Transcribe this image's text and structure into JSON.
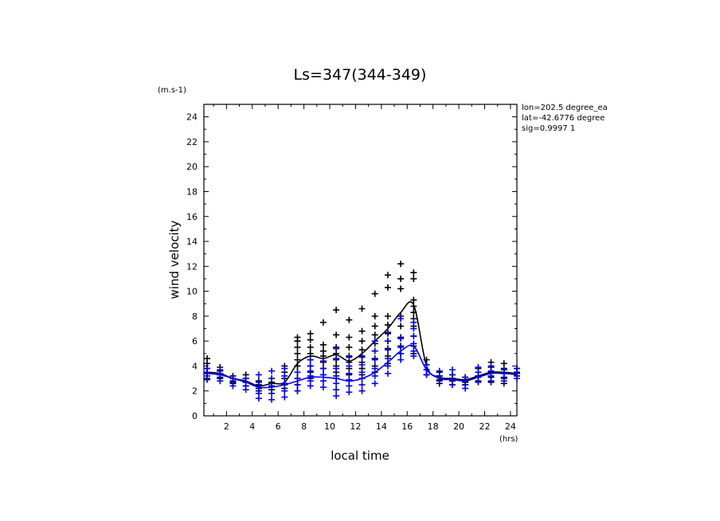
{
  "chart_data": {
    "type": "scatter",
    "title": "Ls=347(344-349)",
    "xlabel": "local time",
    "ylabel": "wind velocity",
    "xunit": "(hrs)",
    "yunit": "(m.s-1)",
    "annotations": [
      "lon=202.5 degree_ea",
      "lat=-42.6776 degree",
      "sig=0.9997 1"
    ],
    "xlim": [
      0.25,
      24.5
    ],
    "ylim": [
      0,
      25
    ],
    "xticks": [
      2,
      4,
      6,
      8,
      10,
      12,
      14,
      16,
      18,
      20,
      22,
      24
    ],
    "yticks": [
      0,
      2,
      4,
      6,
      8,
      10,
      12,
      14,
      16,
      18,
      20,
      22,
      24
    ],
    "grid": false,
    "colors": {
      "black": "#000000",
      "blue": "#0000ff"
    },
    "series": [
      {
        "color": "black",
        "line": {
          "x": [
            0.5,
            1.5,
            2.5,
            3.5,
            4.5,
            5.5,
            6.5,
            7.5,
            8.5,
            9.5,
            10.5,
            11.5,
            12.5,
            13.5,
            14.5,
            15.5,
            16.5,
            17.5,
            18.5,
            19.5,
            20.5,
            21.5,
            22.5,
            23.5,
            24.5
          ],
          "y": [
            3.5,
            3.4,
            3.0,
            2.8,
            2.4,
            2.6,
            2.7,
            4.2,
            4.8,
            4.6,
            4.9,
            4.4,
            5.0,
            6.0,
            7.0,
            8.3,
            8.9,
            4.0,
            3.1,
            3.0,
            2.9,
            3.2,
            3.5,
            3.5,
            3.4
          ]
        },
        "points": [
          [
            0.5,
            [
              4.6,
              4.2,
              3.8,
              3.4,
              3.0
            ]
          ],
          [
            1.5,
            [
              3.9,
              3.6,
              3.3,
              3.0
            ]
          ],
          [
            2.5,
            [
              3.2,
              3.0,
              2.8,
              2.6
            ]
          ],
          [
            3.5,
            [
              3.3,
              3.0,
              2.7,
              2.4
            ]
          ],
          [
            4.5,
            [
              2.8,
              2.5,
              2.2,
              2.0
            ]
          ],
          [
            5.5,
            [
              3.0,
              2.7,
              2.4,
              2.1
            ]
          ],
          [
            6.5,
            [
              4.0,
              3.5,
              3.0,
              2.5,
              2.2
            ]
          ],
          [
            7.5,
            [
              6.3,
              6.0,
              5.5,
              5.0,
              4.5,
              4.0,
              3.5,
              3.0,
              2.5,
              2.0
            ]
          ],
          [
            8.5,
            [
              6.6,
              6.1,
              5.5,
              5.0,
              4.5,
              4.0,
              3.5,
              3.0
            ]
          ],
          [
            9.5,
            [
              7.5,
              5.7,
              5.2,
              4.8,
              4.3,
              3.8,
              3.3
            ]
          ],
          [
            10.5,
            [
              8.5,
              6.5,
              5.5,
              5.0,
              4.5,
              4.0,
              3.5,
              3.0
            ]
          ],
          [
            11.5,
            [
              7.7,
              6.3,
              5.5,
              4.8,
              4.3,
              3.8,
              3.3,
              2.8
            ]
          ],
          [
            12.5,
            [
              8.6,
              6.8,
              6.0,
              5.3,
              4.8,
              4.3,
              3.8,
              3.3
            ]
          ],
          [
            13.5,
            [
              9.8,
              8.0,
              7.2,
              6.5,
              5.8,
              5.2,
              4.6,
              4.0,
              3.5
            ]
          ],
          [
            14.5,
            [
              11.3,
              10.3,
              8.0,
              7.3,
              6.6,
              6.0,
              5.4,
              4.8,
              4.2
            ]
          ],
          [
            15.5,
            [
              12.2,
              11.0,
              10.2,
              8.0,
              7.2,
              6.3,
              5.6,
              5.0
            ]
          ],
          [
            16.5,
            [
              11.5,
              11.0,
              9.3,
              8.8,
              8.3,
              7.8,
              7.2,
              6.4,
              5.6,
              5.0
            ]
          ],
          [
            17.5,
            [
              4.5,
              4.1,
              3.7,
              3.3
            ]
          ],
          [
            18.5,
            [
              3.5,
              3.2,
              2.9,
              2.6
            ]
          ],
          [
            19.5,
            [
              3.3,
              3.0,
              2.8,
              2.5
            ]
          ],
          [
            20.5,
            [
              3.1,
              2.9,
              2.7,
              2.5
            ]
          ],
          [
            21.5,
            [
              3.8,
              3.5,
              3.2,
              2.8
            ]
          ],
          [
            22.5,
            [
              4.3,
              3.9,
              3.5,
              3.1,
              2.7
            ]
          ],
          [
            23.5,
            [
              4.2,
              3.8,
              3.4,
              3.0,
              2.6
            ]
          ],
          [
            24.5,
            [
              3.8,
              3.5,
              3.2
            ]
          ]
        ]
      },
      {
        "color": "blue",
        "line": {
          "x": [
            0.5,
            1.5,
            2.5,
            3.5,
            4.5,
            5.5,
            6.5,
            7.5,
            8.5,
            9.5,
            10.5,
            11.5,
            12.5,
            13.5,
            14.5,
            15.5,
            16.5,
            17.5,
            18.5,
            19.5,
            20.5,
            21.5,
            22.5,
            23.5,
            24.5
          ],
          "y": [
            3.4,
            3.3,
            3.0,
            2.7,
            2.3,
            2.3,
            2.5,
            2.8,
            3.1,
            3.1,
            3.0,
            2.8,
            3.0,
            3.5,
            4.3,
            5.2,
            5.6,
            3.7,
            3.0,
            2.9,
            2.8,
            3.1,
            3.4,
            3.4,
            3.3
          ]
        },
        "points": [
          [
            0.5,
            [
              3.8,
              3.5,
              3.2,
              2.9
            ]
          ],
          [
            1.5,
            [
              3.7,
              3.4,
              3.1,
              2.8
            ]
          ],
          [
            2.5,
            [
              3.0,
              2.7,
              2.4
            ]
          ],
          [
            3.5,
            [
              3.0,
              2.7,
              2.4,
              2.1
            ]
          ],
          [
            4.5,
            [
              3.3,
              2.7,
              2.2,
              1.8,
              1.4
            ]
          ],
          [
            5.5,
            [
              3.6,
              3.0,
              2.4,
              1.8,
              1.3
            ]
          ],
          [
            6.5,
            [
              3.8,
              3.2,
              2.6,
              2.0,
              1.5
            ]
          ],
          [
            7.5,
            [
              3.5,
              3.0,
              2.5,
              2.0
            ]
          ],
          [
            8.5,
            [
              4.5,
              4.0,
              3.6,
              3.2,
              2.8,
              2.4
            ]
          ],
          [
            9.5,
            [
              4.4,
              3.8,
              3.3,
              2.8,
              2.3
            ]
          ],
          [
            10.5,
            [
              5.4,
              4.6,
              3.8,
              3.2,
              2.6,
              2.1,
              1.6
            ]
          ],
          [
            11.5,
            [
              4.7,
              4.0,
              3.4,
              2.9,
              2.4,
              1.9
            ]
          ],
          [
            12.5,
            [
              4.7,
              4.1,
              3.5,
              3.0,
              2.5,
              2.0
            ]
          ],
          [
            13.5,
            [
              6.0,
              5.2,
              4.5,
              3.8,
              3.2,
              2.6
            ]
          ],
          [
            14.5,
            [
              6.7,
              6.0,
              5.3,
              4.6,
              4.0,
              3.4
            ]
          ],
          [
            15.5,
            [
              7.8,
              6.2,
              5.5,
              5.0,
              4.5
            ]
          ],
          [
            16.5,
            [
              7.5,
              7.0,
              6.4,
              5.8,
              5.2,
              4.8
            ]
          ],
          [
            17.5,
            [
              4.1,
              3.7,
              3.3
            ]
          ],
          [
            18.5,
            [
              3.6,
              3.2,
              2.8
            ]
          ],
          [
            19.5,
            [
              3.7,
              3.3,
              2.9,
              2.5
            ]
          ],
          [
            20.5,
            [
              3.1,
              2.8,
              2.5,
              2.2
            ]
          ],
          [
            21.5,
            [
              3.9,
              3.5,
              3.1,
              2.7
            ]
          ],
          [
            22.5,
            [
              4.0,
              3.6,
              3.2,
              2.8
            ]
          ],
          [
            23.5,
            [
              3.7,
              3.4,
              3.1,
              2.8
            ]
          ],
          [
            24.5,
            [
              3.8,
              3.4,
              3.0
            ]
          ]
        ]
      }
    ]
  }
}
